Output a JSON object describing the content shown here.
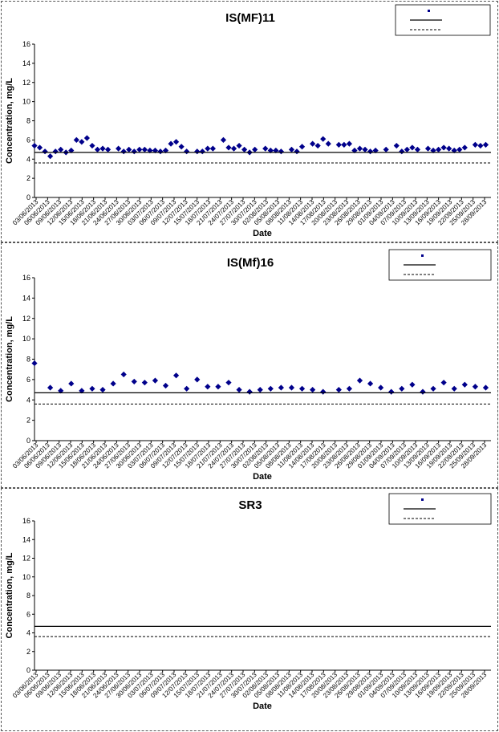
{
  "chart_data": [
    {
      "type": "scatter",
      "title": "IS(MF)11",
      "xlabel": "Date",
      "ylabel": "Concentration, mg/L",
      "ylim": [
        0,
        16
      ],
      "yticks": [
        0,
        2,
        4,
        6,
        8,
        10,
        12,
        14,
        16
      ],
      "grid": false,
      "legend_position": "top-right",
      "x_tick_labels": [
        "03/06/2013",
        "06/06/2013",
        "09/06/2013",
        "12/06/2013",
        "15/06/2013",
        "18/06/2013",
        "21/06/2013",
        "24/06/2013",
        "27/06/2013",
        "30/06/2013",
        "03/07/2013",
        "06/07/2013",
        "09/07/2013",
        "12/07/2013",
        "15/07/2013",
        "18/07/2013",
        "21/07/2013",
        "24/07/2013",
        "27/07/2013",
        "30/07/2013",
        "02/08/2013",
        "05/08/2013",
        "08/08/2013",
        "11/08/2013",
        "14/08/2013",
        "17/08/2013",
        "20/08/2013",
        "23/08/2013",
        "26/08/2013",
        "29/08/2013",
        "01/09/2013",
        "04/09/2013",
        "07/09/2013",
        "10/09/2013",
        "13/09/2013",
        "16/09/2013",
        "19/09/2013",
        "22/09/2013",
        "25/09/2013",
        "28/09/2013"
      ],
      "series": [
        {
          "name": "",
          "kind": "markers",
          "color": "#00008B",
          "x": [
            0,
            1,
            2,
            3,
            4,
            5,
            6,
            7,
            8,
            9,
            10,
            11,
            12,
            13,
            14,
            16,
            17,
            18,
            19,
            20,
            21,
            22,
            23,
            24,
            25,
            26,
            27,
            28,
            29,
            31,
            32,
            33,
            34,
            36,
            37,
            38,
            39,
            40,
            41,
            42,
            44,
            45,
            46,
            47,
            49,
            50,
            51,
            53,
            54,
            55,
            56,
            58,
            59,
            60,
            61,
            62,
            63,
            64,
            65,
            67,
            69,
            70,
            71,
            72,
            73,
            75,
            76,
            77,
            78,
            79,
            80,
            81,
            82,
            84,
            85,
            86
          ],
          "y": [
            5.4,
            5.2,
            4.8,
            4.3,
            4.8,
            5.0,
            4.7,
            4.9,
            6.0,
            5.8,
            6.2,
            5.4,
            5.0,
            5.1,
            5.0,
            5.1,
            4.8,
            5.0,
            4.8,
            5.0,
            5.0,
            4.9,
            4.9,
            4.8,
            4.9,
            5.6,
            5.8,
            5.3,
            4.8,
            4.8,
            4.8,
            5.1,
            5.1,
            6.0,
            5.2,
            5.1,
            5.4,
            5.0,
            4.7,
            5.0,
            5.1,
            4.9,
            4.9,
            4.8,
            5.0,
            4.8,
            5.3,
            5.6,
            5.4,
            6.1,
            5.6,
            5.5,
            5.5,
            5.6,
            4.9,
            5.1,
            5.0,
            4.8,
            4.9,
            5.0,
            5.4,
            4.8,
            5.0,
            5.2,
            5.0,
            5.1,
            4.9,
            5.0,
            5.2,
            5.1,
            4.9,
            5.0,
            5.2,
            5.5,
            5.4,
            5.5
          ]
        },
        {
          "name": "",
          "kind": "line",
          "style": "solid",
          "color": "#000000",
          "value": 4.7
        },
        {
          "name": "",
          "kind": "line",
          "style": "dashed",
          "color": "#000000",
          "value": 3.6
        }
      ]
    },
    {
      "type": "scatter",
      "title": "IS(Mf)16",
      "xlabel": "Date",
      "ylabel": "Concentration, mg/L",
      "ylim": [
        0,
        16
      ],
      "yticks": [
        0,
        2,
        4,
        6,
        8,
        10,
        12,
        14,
        16
      ],
      "grid": false,
      "legend_position": "top-right",
      "x_tick_labels": [
        "03/06/2013",
        "06/06/2013",
        "09/06/2013",
        "12/06/2013",
        "15/06/2013",
        "18/06/2013",
        "21/06/2013",
        "24/06/2013",
        "27/06/2013",
        "30/06/2013",
        "03/07/2013",
        "06/07/2013",
        "09/07/2013",
        "12/07/2013",
        "15/07/2013",
        "18/07/2013",
        "21/07/2013",
        "24/07/2013",
        "27/07/2013",
        "30/07/2013",
        "02/08/2013",
        "05/08/2013",
        "08/08/2013",
        "11/08/2013",
        "14/08/2013",
        "17/08/2013",
        "20/08/2013",
        "23/08/2013",
        "26/08/2013",
        "29/08/2013",
        "01/09/2013",
        "04/09/2013",
        "07/09/2013",
        "10/09/2013",
        "13/09/2013",
        "16/09/2013",
        "19/09/2013",
        "22/09/2013",
        "25/09/2013",
        "28/09/2013"
      ],
      "series": [
        {
          "name": "",
          "kind": "markers",
          "color": "#00008B",
          "x": [
            0,
            3,
            5,
            7,
            9,
            11,
            13,
            15,
            17,
            19,
            21,
            23,
            25,
            27,
            29,
            31,
            33,
            35,
            37,
            39,
            41,
            43,
            45,
            47,
            49,
            51,
            53,
            55,
            58,
            60,
            62,
            64,
            66,
            68,
            70,
            72,
            74,
            76,
            78,
            80,
            82,
            84,
            86
          ],
          "y": [
            7.6,
            5.2,
            4.9,
            5.6,
            4.9,
            5.1,
            5.0,
            5.6,
            6.5,
            5.8,
            5.7,
            5.9,
            5.4,
            6.4,
            5.1,
            6.0,
            5.3,
            5.3,
            5.7,
            5.0,
            4.8,
            5.0,
            5.1,
            5.2,
            5.2,
            5.1,
            5.0,
            4.8,
            5.0,
            5.1,
            5.9,
            5.6,
            5.2,
            4.8,
            5.1,
            5.5,
            4.8,
            5.1,
            5.7,
            5.1,
            5.5,
            5.3,
            5.2
          ]
        },
        {
          "name": "",
          "kind": "line",
          "style": "solid",
          "color": "#000000",
          "value": 4.7
        },
        {
          "name": "",
          "kind": "line",
          "style": "dashed",
          "color": "#000000",
          "value": 3.6
        }
      ]
    },
    {
      "type": "scatter",
      "title": "SR3",
      "xlabel": "Date",
      "ylabel": "Concentration, mg/L",
      "ylim": [
        0,
        16
      ],
      "yticks": [
        0,
        2,
        4,
        6,
        8,
        10,
        12,
        14,
        16
      ],
      "grid": false,
      "legend_position": "top-right",
      "x_tick_labels": [
        "03/06/2013",
        "06/06/2013",
        "09/06/2013",
        "12/06/2013",
        "15/06/2013",
        "18/06/2013",
        "21/06/2013",
        "24/06/2013",
        "27/06/2013",
        "30/06/2013",
        "03/07/2013",
        "06/07/2013",
        "09/07/2013",
        "12/07/2013",
        "15/07/2013",
        "18/07/2013",
        "21/07/2013",
        "24/07/2013",
        "27/07/2013",
        "30/07/2013",
        "02/08/2013",
        "05/08/2013",
        "08/08/2013",
        "11/08/2013",
        "14/08/2013",
        "17/08/2013",
        "20/08/2013",
        "23/08/2013",
        "26/08/2013",
        "29/08/2013",
        "01/09/2013",
        "04/09/2013",
        "07/09/2013",
        "10/09/2013",
        "13/09/2013",
        "16/09/2013",
        "19/09/2013",
        "22/09/2013",
        "25/09/2013",
        "28/09/2013"
      ],
      "series": [
        {
          "name": "",
          "kind": "markers",
          "color": "#00008B",
          "x": [],
          "y": []
        },
        {
          "name": "",
          "kind": "line",
          "style": "solid",
          "color": "#000000",
          "value": 4.7
        },
        {
          "name": "",
          "kind": "line",
          "style": "dashed",
          "color": "#000000",
          "value": 3.6
        }
      ]
    }
  ]
}
